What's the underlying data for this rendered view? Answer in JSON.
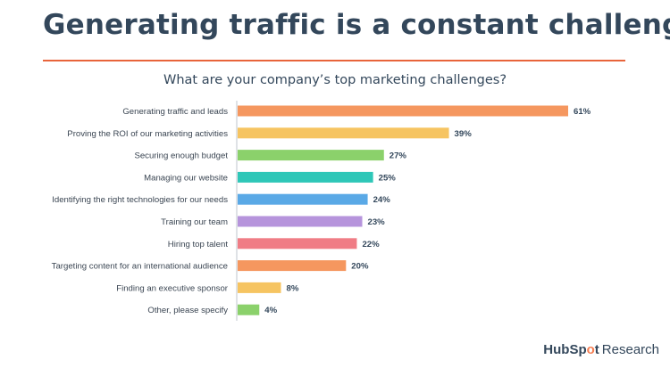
{
  "page": {
    "title": "Generating traffic is a constant challenge"
  },
  "brand": {
    "logo_text_left": "HubSp",
    "logo_text_mark": "o",
    "logo_text_right": "t",
    "suffix": "Research"
  },
  "colors": {
    "title_rule": "#e8643b",
    "axis": "#bfc5cc"
  },
  "chart_data": {
    "type": "bar",
    "orientation": "horizontal",
    "title": "What are your company’s top marketing challenges?",
    "xlabel": "",
    "ylabel": "",
    "xlim": [
      0,
      61
    ],
    "grid": false,
    "legend": "none",
    "categories": [
      "Generating traffic and leads",
      "Proving the ROI of our marketing activities",
      "Securing enough budget",
      "Managing our website",
      "Identifying the right technologies for our needs",
      "Training our team",
      "Hiring top talent",
      "Targeting content for an international audience",
      "Finding an executive sponsor",
      "Other, please specify"
    ],
    "values": [
      61,
      39,
      27,
      25,
      24,
      23,
      22,
      20,
      8,
      4
    ],
    "value_labels": [
      "61%",
      "39%",
      "27%",
      "25%",
      "24%",
      "23%",
      "22%",
      "20%",
      "8%",
      "4%"
    ],
    "bar_colors": [
      "#f5975f",
      "#f6c461",
      "#8bd16b",
      "#2ec7b8",
      "#5aa9e6",
      "#b694dc",
      "#f07c85",
      "#f5975f",
      "#f6c461",
      "#8bd16b"
    ]
  }
}
